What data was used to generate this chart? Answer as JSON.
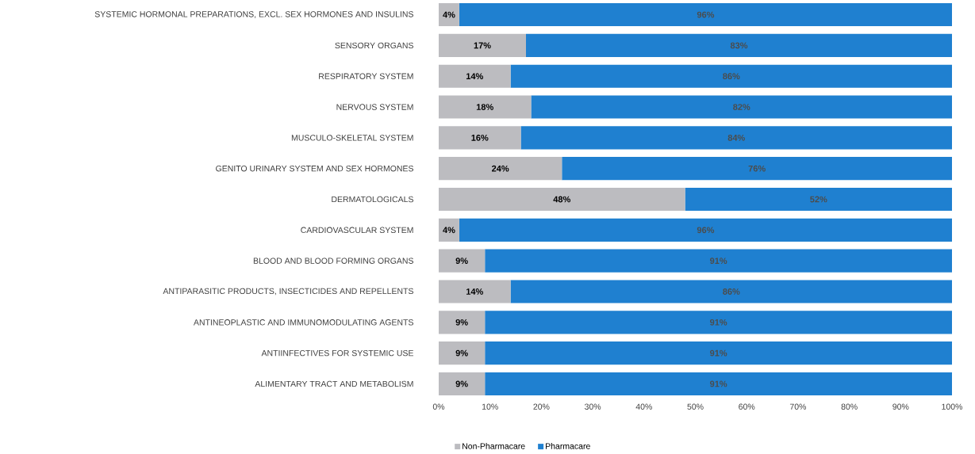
{
  "chart_data": {
    "type": "bar",
    "orientation": "horizontal",
    "stacked": true,
    "categories": [
      "SYSTEMIC HORMONAL PREPARATIONS, EXCL. SEX HORMONES AND INSULINS",
      "SENSORY ORGANS",
      "RESPIRATORY SYSTEM",
      "NERVOUS SYSTEM",
      "MUSCULO-SKELETAL SYSTEM",
      "GENITO URINARY SYSTEM AND SEX HORMONES",
      "DERMATOLOGICALS",
      "CARDIOVASCULAR SYSTEM",
      "BLOOD AND BLOOD FORMING ORGANS",
      "ANTIPARASITIC PRODUCTS, INSECTICIDES AND REPELLENTS",
      "ANTINEOPLASTIC AND IMMUNOMODULATING AGENTS",
      "ANTIINFECTIVES FOR SYSTEMIC USE",
      "ALIMENTARY TRACT AND METABOLISM"
    ],
    "series": [
      {
        "name": "Non-Pharmacare",
        "color": "#bcbcc0",
        "values": [
          4,
          17,
          14,
          18,
          16,
          24,
          48,
          4,
          9,
          14,
          9,
          9,
          9
        ],
        "value_labels": [
          "4%",
          "17%",
          "14%",
          "18%",
          "16%",
          "24%",
          "48%",
          "4%",
          "9%",
          "14%",
          "9%",
          "9%",
          "9%"
        ]
      },
      {
        "name": "Pharmacare",
        "color": "#1f80d0",
        "values": [
          96,
          83,
          86,
          82,
          84,
          76,
          52,
          96,
          91,
          86,
          91,
          91,
          91
        ],
        "value_labels": [
          "96%",
          "83%",
          "86%",
          "82%",
          "84%",
          "76%",
          "52%",
          "96%",
          "91%",
          "86%",
          "91%",
          "91%",
          "91%"
        ]
      }
    ],
    "xlim": [
      0,
      100
    ],
    "xticks": [
      {
        "value": 0,
        "label": "0%"
      },
      {
        "value": 10,
        "label": "10%"
      },
      {
        "value": 20,
        "label": "20%"
      },
      {
        "value": 30,
        "label": "30%"
      },
      {
        "value": 40,
        "label": "40%"
      },
      {
        "value": 50,
        "label": "50%"
      },
      {
        "value": 60,
        "label": "60%"
      },
      {
        "value": 70,
        "label": "70%"
      },
      {
        "value": 80,
        "label": "80%"
      },
      {
        "value": 90,
        "label": "90%"
      },
      {
        "value": 100,
        "label": "100%"
      }
    ],
    "legend": "bottom"
  }
}
